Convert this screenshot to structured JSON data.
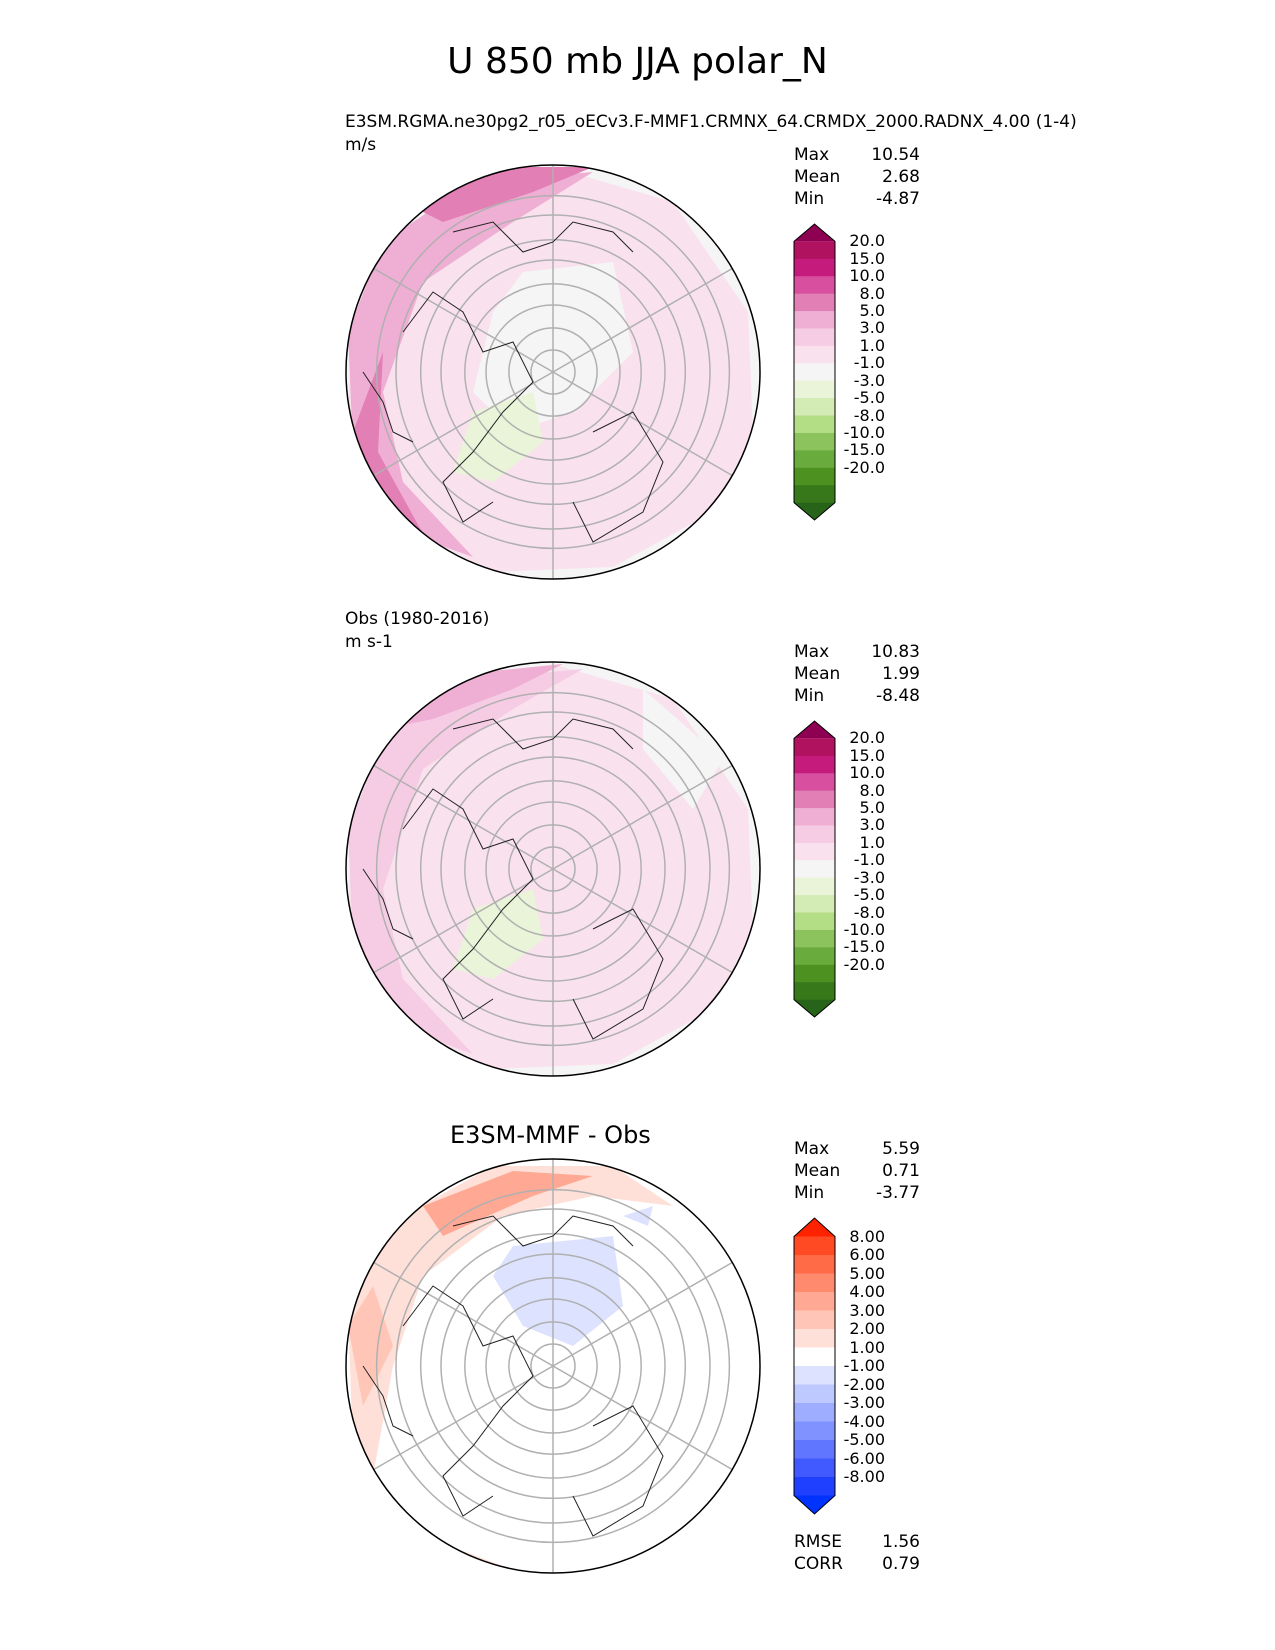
{
  "figure": {
    "title": "U 850 mb JJA polar_N"
  },
  "panels": [
    {
      "title": "E3SM.RGMA.ne30pg2_r05_oECv3.F-MMF1.CRMNX_64.CRMDX_2000.RADNX_4.00 (1-4)",
      "units": "m/s",
      "stats": [
        {
          "label": "Max",
          "value": "10.54"
        },
        {
          "label": "Mean",
          "value": "2.68"
        },
        {
          "label": "Min",
          "value": "-4.87"
        }
      ]
    },
    {
      "title": "Obs (1980-2016)",
      "units": "m s-1",
      "stats": [
        {
          "label": "Max",
          "value": "10.83"
        },
        {
          "label": "Mean",
          "value": "1.99"
        },
        {
          "label": "Min",
          "value": "-8.48"
        }
      ]
    },
    {
      "title": "E3SM-MMF - Obs",
      "units": "",
      "stats": [
        {
          "label": "Max",
          "value": "5.59"
        },
        {
          "label": "Mean",
          "value": "0.71"
        },
        {
          "label": "Min",
          "value": "-3.77"
        }
      ],
      "metrics": [
        {
          "label": "RMSE",
          "value": "1.56"
        },
        {
          "label": "CORR",
          "value": "0.79"
        }
      ]
    }
  ],
  "chart_data": [
    {
      "type": "heatmap",
      "projection": "north polar stereographic",
      "variable": "U 850 mb JJA",
      "title": "E3SM.RGMA.ne30pg2_r05_oECv3.F-MMF1.CRMNX_64.CRMDX_2000.RADNX_4.00 (1-4)",
      "units": "m/s",
      "colorbar": {
        "ticks": [
          "20.0",
          "15.0",
          "10.0",
          "8.0",
          "5.0",
          "3.0",
          "1.0",
          "-1.0",
          "-3.0",
          "-5.0",
          "-8.0",
          "-10.0",
          "-15.0",
          "-20.0"
        ],
        "colors": [
          "#8e0152",
          "#b0125f",
          "#c51b7d",
          "#d74f9e",
          "#e27fb5",
          "#efaed3",
          "#f6cce4",
          "#f9e2ee",
          "#f5f5f5",
          "#eaf4d9",
          "#d3ebb4",
          "#b4de86",
          "#8dc35d",
          "#6aab3d",
          "#4d9221",
          "#37791a",
          "#276419"
        ]
      },
      "max": 10.54,
      "mean": 2.68,
      "min": -4.87
    },
    {
      "type": "heatmap",
      "projection": "north polar stereographic",
      "variable": "U 850 mb JJA",
      "title": "Obs (1980-2016)",
      "units": "m s-1",
      "colorbar": {
        "ticks": [
          "20.0",
          "15.0",
          "10.0",
          "8.0",
          "5.0",
          "3.0",
          "1.0",
          "-1.0",
          "-3.0",
          "-5.0",
          "-8.0",
          "-10.0",
          "-15.0",
          "-20.0"
        ],
        "colors": [
          "#8e0152",
          "#b0125f",
          "#c51b7d",
          "#d74f9e",
          "#e27fb5",
          "#efaed3",
          "#f6cce4",
          "#f9e2ee",
          "#f5f5f5",
          "#eaf4d9",
          "#d3ebb4",
          "#b4de86",
          "#8dc35d",
          "#6aab3d",
          "#4d9221",
          "#37791a",
          "#276419"
        ]
      },
      "max": 10.83,
      "mean": 1.99,
      "min": -8.48
    },
    {
      "type": "heatmap",
      "projection": "north polar stereographic",
      "variable": "U 850 mb JJA difference",
      "title": "E3SM-MMF - Obs",
      "colorbar": {
        "ticks": [
          "8.00",
          "6.00",
          "5.00",
          "4.00",
          "3.00",
          "2.00",
          "1.00",
          "-1.00",
          "-2.00",
          "-3.00",
          "-4.00",
          "-5.00",
          "-6.00",
          "-8.00"
        ],
        "colors": [
          "#ff2200",
          "#ff4a23",
          "#ff6a47",
          "#ff8a6e",
          "#ffa893",
          "#ffc6b8",
          "#ffe0d8",
          "#ffffff",
          "#dde3ff",
          "#bec9ff",
          "#9eadff",
          "#7f92ff",
          "#6076ff",
          "#405aff",
          "#2040ff",
          "#0033ff"
        ]
      },
      "max": 5.59,
      "mean": 0.71,
      "min": -3.77,
      "rmse": 1.56,
      "corr": 0.79
    }
  ]
}
